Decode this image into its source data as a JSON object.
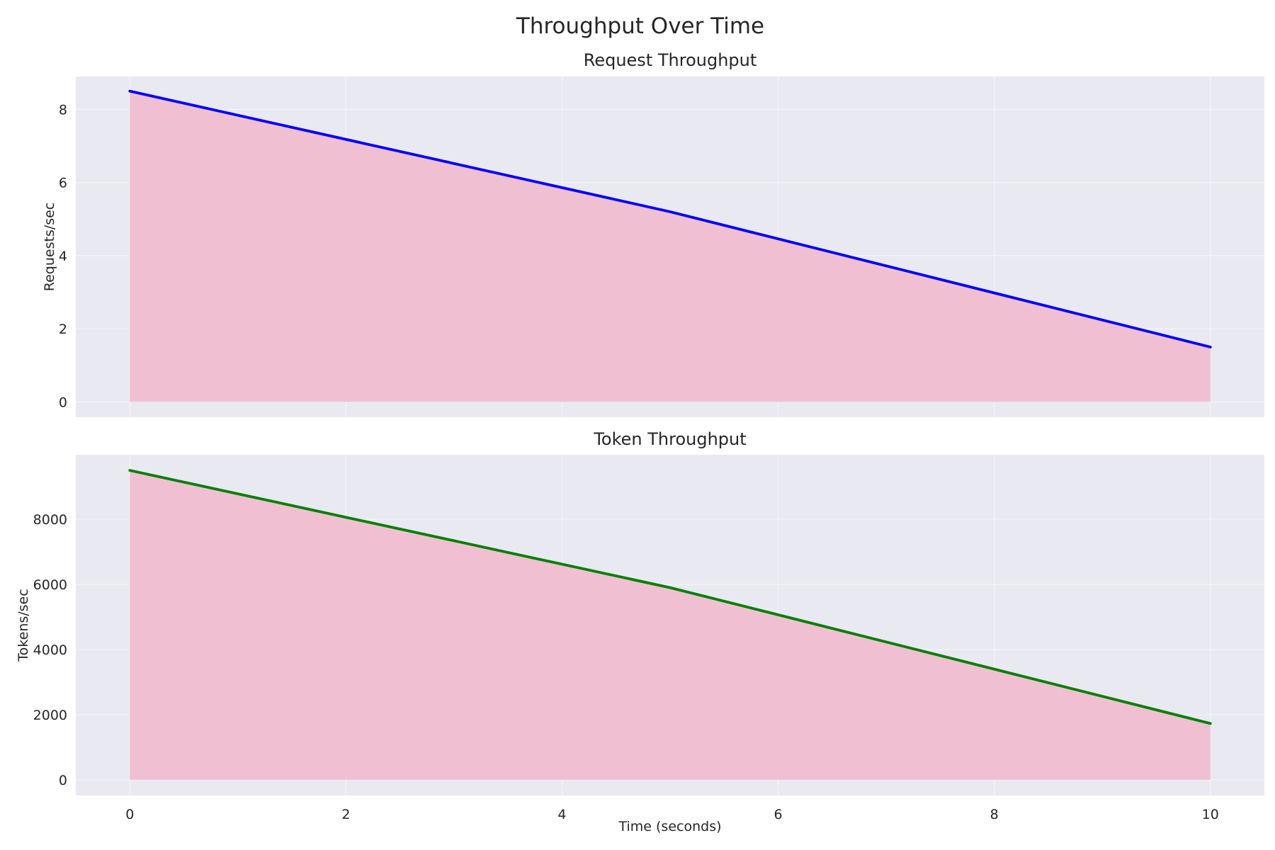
{
  "figure": {
    "suptitle": "Throughput Over Time",
    "xlabel": "Time (seconds)"
  },
  "chart_data": [
    {
      "type": "area",
      "title": "Request Throughput",
      "xlabel": "",
      "ylabel": "Requests/sec",
      "x": [
        0,
        5,
        10
      ],
      "series": [
        {
          "values": [
            8.5,
            5.2,
            1.5
          ],
          "line_color": "#0000ff",
          "fill_color": "#f0c0d2"
        }
      ],
      "xlim": [
        -0.5,
        10.5
      ],
      "ylim": [
        -0.42,
        8.9
      ],
      "xticks": [
        0,
        2,
        4,
        6,
        8,
        10
      ],
      "yticks": [
        0,
        2,
        4,
        6,
        8
      ],
      "show_x_tick_labels": false,
      "grid": true,
      "background": "#e9e9f1"
    },
    {
      "type": "area",
      "title": "Token Throughput",
      "xlabel": "Time (seconds)",
      "ylabel": "Tokens/sec",
      "x": [
        0,
        5,
        10
      ],
      "series": [
        {
          "values": [
            9500,
            5900,
            1730
          ],
          "line_color": "#008000",
          "fill_color": "#f0c0d2"
        }
      ],
      "xlim": [
        -0.5,
        10.5
      ],
      "ylim": [
        -480,
        9980
      ],
      "xticks": [
        0,
        2,
        4,
        6,
        8,
        10
      ],
      "yticks": [
        0,
        2000,
        4000,
        6000,
        8000
      ],
      "show_x_tick_labels": true,
      "grid": true,
      "background": "#e9e9f1"
    }
  ]
}
